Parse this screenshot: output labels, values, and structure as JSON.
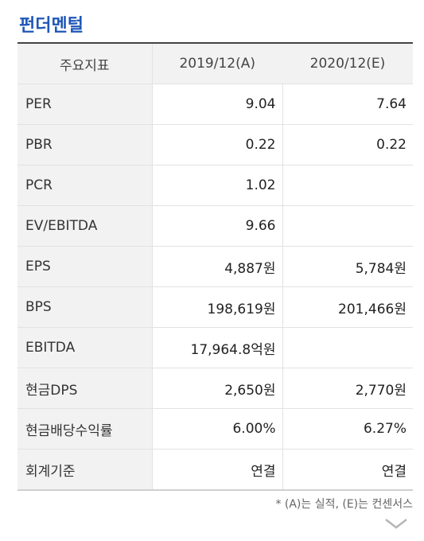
{
  "title": "펀더멘털",
  "table": {
    "headers": [
      "주요지표",
      "2019/12(A)",
      "2020/12(E)"
    ],
    "rows": [
      {
        "label": "PER",
        "v2019": "9.04",
        "v2020": "7.64"
      },
      {
        "label": "PBR",
        "v2019": "0.22",
        "v2020": "0.22"
      },
      {
        "label": "PCR",
        "v2019": "1.02",
        "v2020": ""
      },
      {
        "label": "EV/EBITDA",
        "v2019": "9.66",
        "v2020": ""
      },
      {
        "label": "EPS",
        "v2019": "4,887원",
        "v2020": "5,784원"
      },
      {
        "label": "BPS",
        "v2019": "198,619원",
        "v2020": "201,466원"
      },
      {
        "label": "EBITDA",
        "v2019": "17,964.8억원",
        "v2020": ""
      },
      {
        "label": "현금DPS",
        "v2019": "2,650원",
        "v2020": "2,770원"
      },
      {
        "label": "현금배당수익률",
        "v2019": "6.00%",
        "v2020": "6.27%"
      },
      {
        "label": "회계기준",
        "v2019": "연결",
        "v2020": "연결"
      }
    ]
  },
  "footnote": "* (A)는 실적, (E)는 컨센서스",
  "icons": {
    "expand": "chevron-down-icon"
  }
}
